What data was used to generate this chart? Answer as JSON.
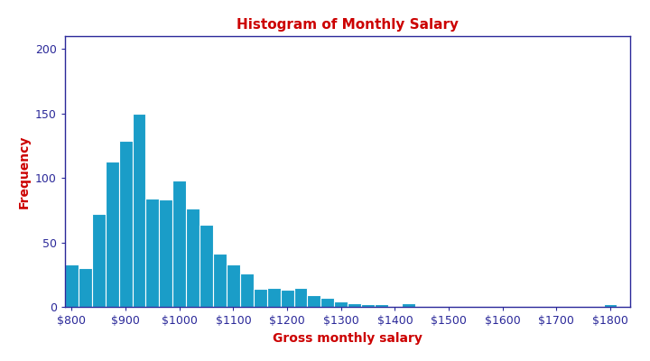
{
  "title": "Histogram of Monthly Salary",
  "xlabel": "Gross monthly salary",
  "ylabel": "Frequency",
  "title_color": "#cc0000",
  "label_color": "#cc0000",
  "bar_color": "#1a9dc8",
  "bar_edge_color": "#ffffff",
  "axis_color": "#2a2899",
  "tick_color": "#2a2899",
  "bin_width": 25,
  "bin_start": 787.5,
  "bar_heights": [
    33,
    30,
    72,
    113,
    129,
    150,
    84,
    83,
    98,
    76,
    64,
    41,
    33,
    26,
    14,
    15,
    13,
    15,
    9,
    7,
    4,
    3,
    2,
    2,
    0,
    3,
    0,
    0,
    0,
    0,
    0,
    0,
    0,
    0,
    0,
    0,
    0,
    0,
    0,
    0,
    2
  ],
  "ylim": [
    0,
    210
  ],
  "yticks": [
    0,
    50,
    100,
    150,
    200
  ],
  "xtick_vals": [
    800,
    900,
    1000,
    1100,
    1200,
    1300,
    1400,
    1500,
    1600,
    1700,
    1800
  ],
  "xlim": [
    787.5,
    1837.5
  ],
  "title_fontsize": 11,
  "label_fontsize": 10,
  "tick_fontsize": 9
}
